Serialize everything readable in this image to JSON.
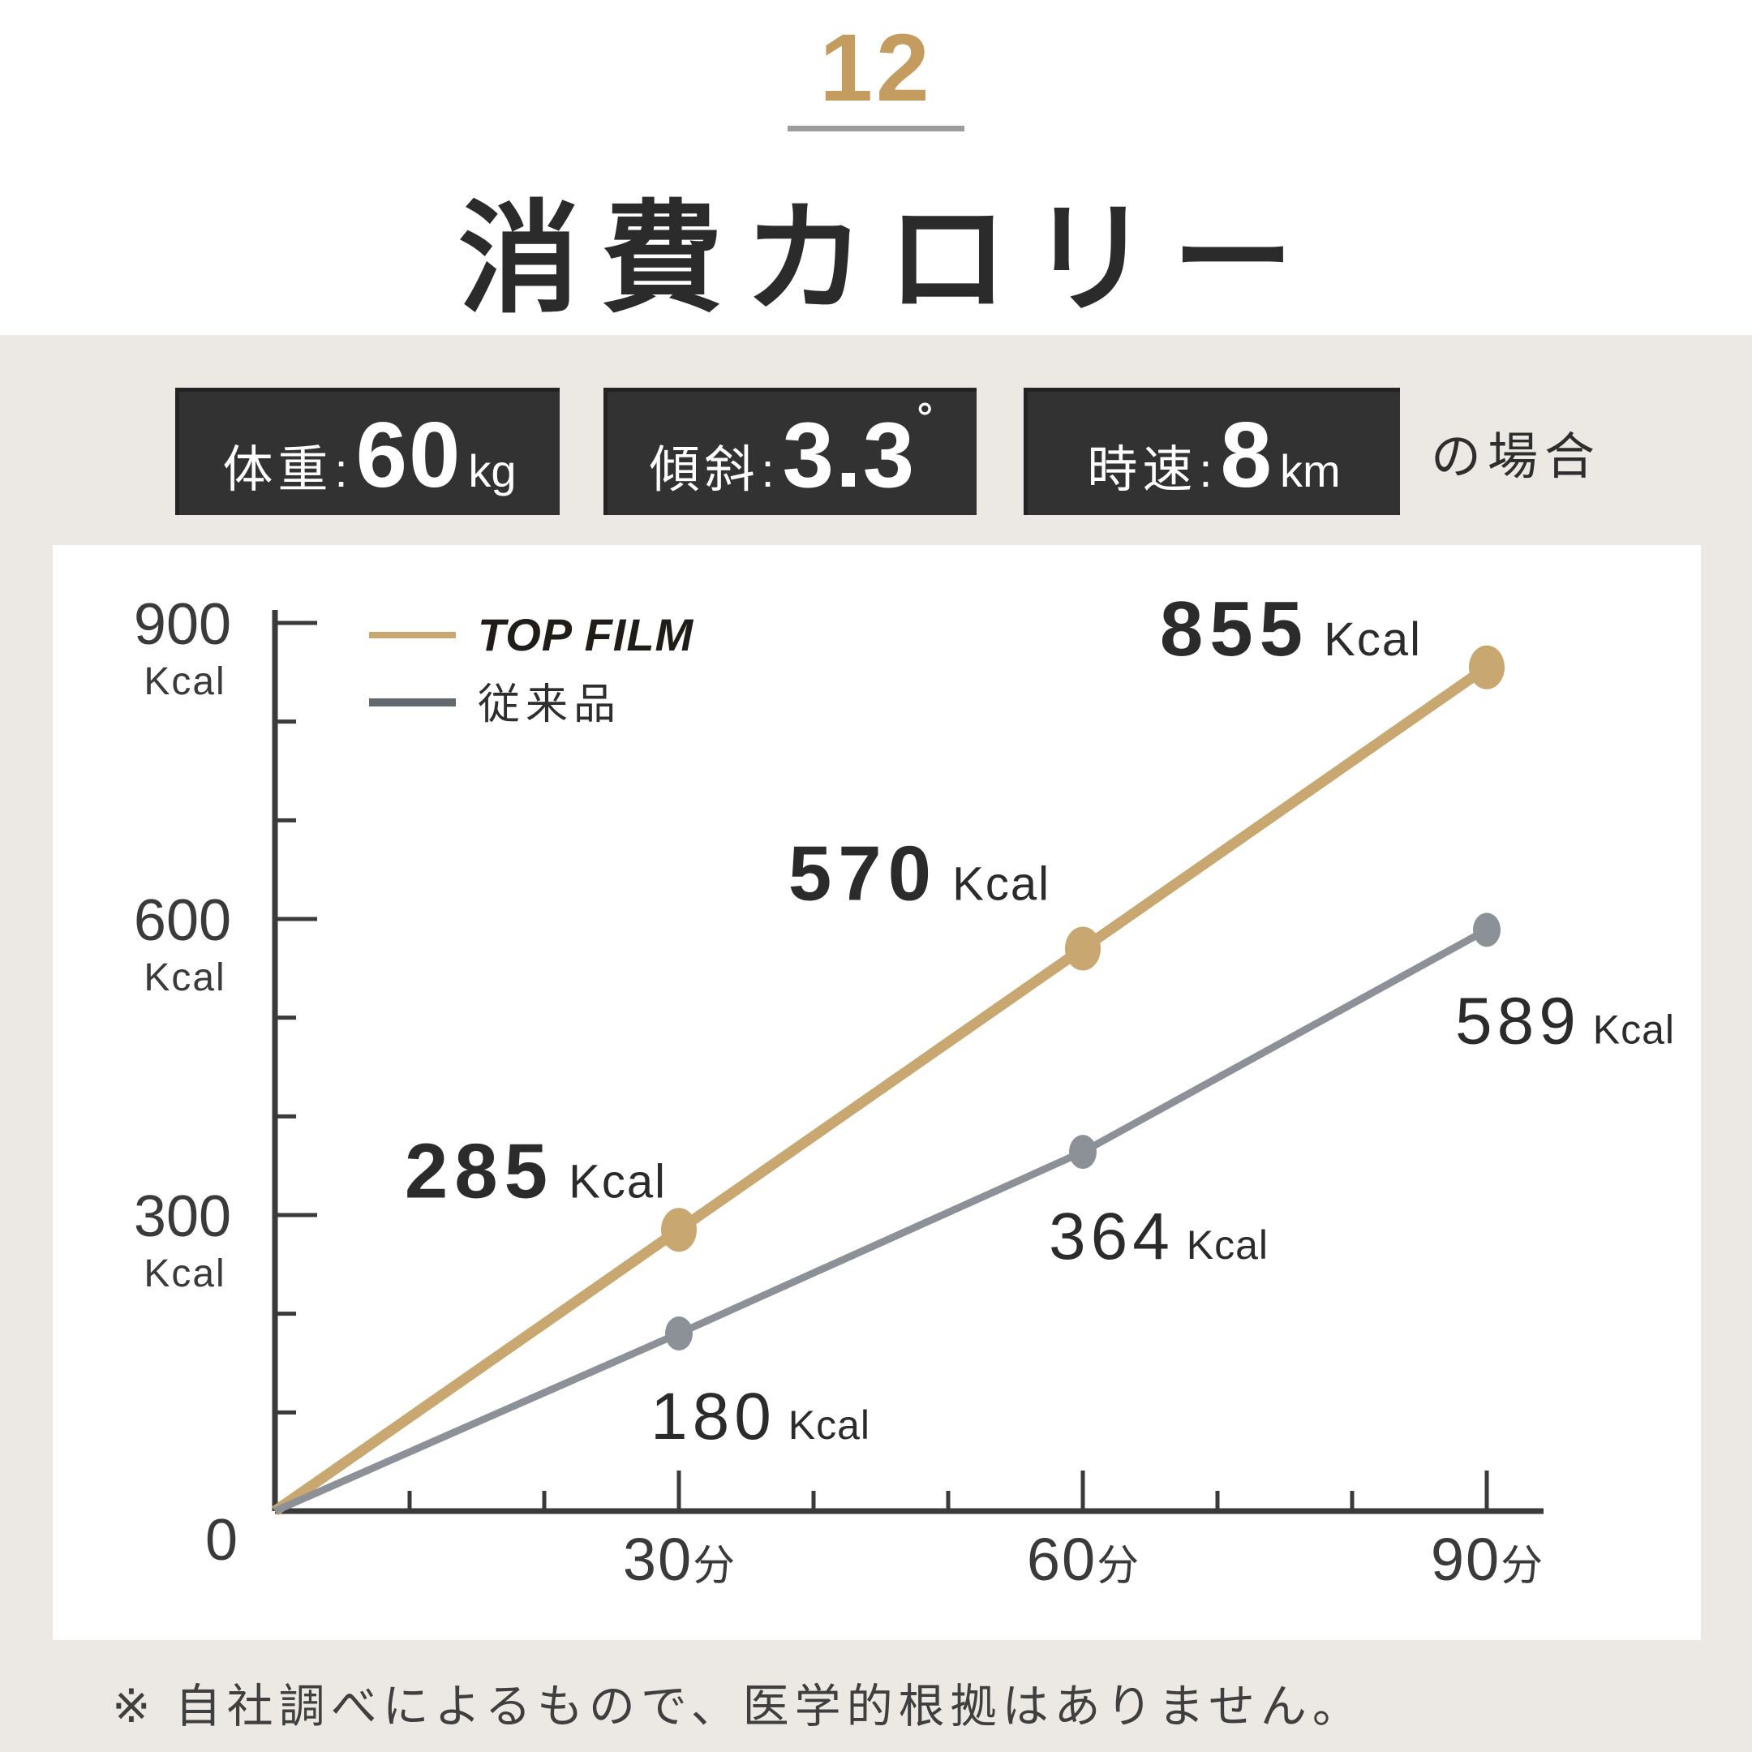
{
  "header": {
    "page_number": "12",
    "title": "消費カロリー"
  },
  "conditions": {
    "badges": [
      {
        "label": "体重",
        "colon": ":",
        "value": "60",
        "unit": "kg"
      },
      {
        "label": "傾斜",
        "colon": ":",
        "value": "3.3",
        "unit": "˚"
      },
      {
        "label": "時速",
        "colon": ":",
        "value": "8",
        "unit": "km"
      }
    ],
    "suffix": "の場合"
  },
  "chart_data": {
    "type": "line",
    "x": [
      0,
      30,
      60,
      90
    ],
    "x_tick_values": [
      "30",
      "60",
      "90"
    ],
    "x_unit": "分",
    "y_unit": "Kcal",
    "ylim": [
      0,
      900
    ],
    "yticks_major": [
      900,
      600,
      300
    ],
    "ytick_minor_step": 100,
    "xtick_minor_step_min": 10,
    "origin_label": "0",
    "unit_suffix": "Kcal",
    "grid": false,
    "legend_position": "top-left",
    "series": [
      {
        "name": "TOP FILM",
        "color": "#C8A770",
        "values": [
          0,
          285,
          570,
          855
        ],
        "point_labels": [
          "285",
          "570",
          "855"
        ]
      },
      {
        "name": "従来品",
        "color": "#8B9197",
        "values": [
          0,
          180,
          364,
          589
        ],
        "point_labels": [
          "180",
          "364",
          "589"
        ]
      }
    ],
    "legend_swatch_colors": [
      "#C8A770",
      "#63696E"
    ]
  },
  "footnote": "※ 自社調べによるもので、医学的根拠はありません。"
}
